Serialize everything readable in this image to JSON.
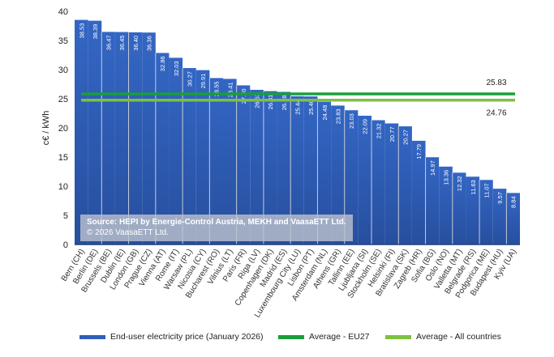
{
  "chart_data": {
    "type": "bar",
    "ylabel": "c€ / kWh",
    "ylim": [
      0,
      40
    ],
    "yticks": [
      0,
      5,
      10,
      15,
      20,
      25,
      30,
      35,
      40
    ],
    "grid": false,
    "categories": [
      "Bern (CH)",
      "Berlin (DE)",
      "Brussels (BE)",
      "Dublin (IE)",
      "London (GB)",
      "Prague (CZ)",
      "Vienna (AT)",
      "Rome (IT)",
      "Warsaw (PL)",
      "Nicosia (CY)",
      "Bucharest (RO)",
      "Vilnius (LT)",
      "Paris (FR)",
      "Riga (LV)",
      "Copenhagen (DK)",
      "Madrid (ES)",
      "Luxembourg City (LU)",
      "Lisbon (PT)",
      "Amsterdam (NL)",
      "Athens (GR)",
      "Tallinn (EE)",
      "Ljubljana (SI)",
      "Stockholm (SE)",
      "Helsinki (FI)",
      "Bratislava (SK)",
      "Zagreb (HR)",
      "Sofia (BG)",
      "Oslo (NO)",
      "Valletta (MT)",
      "Belgrade (RS)",
      "Podgorica (ME)",
      "Budapest (HU)",
      "Kyiv (UA)"
    ],
    "values": [
      38.53,
      38.39,
      36.47,
      36.45,
      36.4,
      36.36,
      32.86,
      32.03,
      30.27,
      29.91,
      28.55,
      28.41,
      27.3,
      26.53,
      26.31,
      26.18,
      25.44,
      25.4,
      24.48,
      23.83,
      23.03,
      22.09,
      21.32,
      20.77,
      20.27,
      17.79,
      14.97,
      13.36,
      12.32,
      11.63,
      11.07,
      9.57,
      8.84
    ],
    "value_labels": [
      "38.53",
      "38.39",
      "36.47",
      "36.45",
      "36.40",
      "36.36",
      "32.86",
      "32.03",
      "30.27",
      "29.91",
      "28.55",
      "28.41",
      "27.30",
      "26.53",
      "26.31",
      "26.18",
      "25.44",
      "25.40",
      "24.48",
      "23.83",
      "23.03",
      "22.09",
      "21.32",
      "20.77",
      "20.27",
      "17.79",
      "14.97",
      "13.36",
      "12.32",
      "11.63",
      "11.07",
      "9.57",
      "8.84"
    ],
    "lines": [
      {
        "name": "Average - EU27",
        "value": 25.83,
        "label": "25.83",
        "color": "#1a9e3a"
      },
      {
        "name": "Average - All countries",
        "value": 24.76,
        "label": "24.76",
        "color": "#7dc242"
      }
    ],
    "bar_series_name": "End-user electricity price (January 2026)",
    "bar_color": "#2f5fb8",
    "legend_position": "bottom"
  },
  "source": {
    "line1": "Source: HEPI by Energie-Control Austria, MEKH and VaasaETT Ltd.",
    "line2": "© 2026 VaasaETT Ltd."
  }
}
